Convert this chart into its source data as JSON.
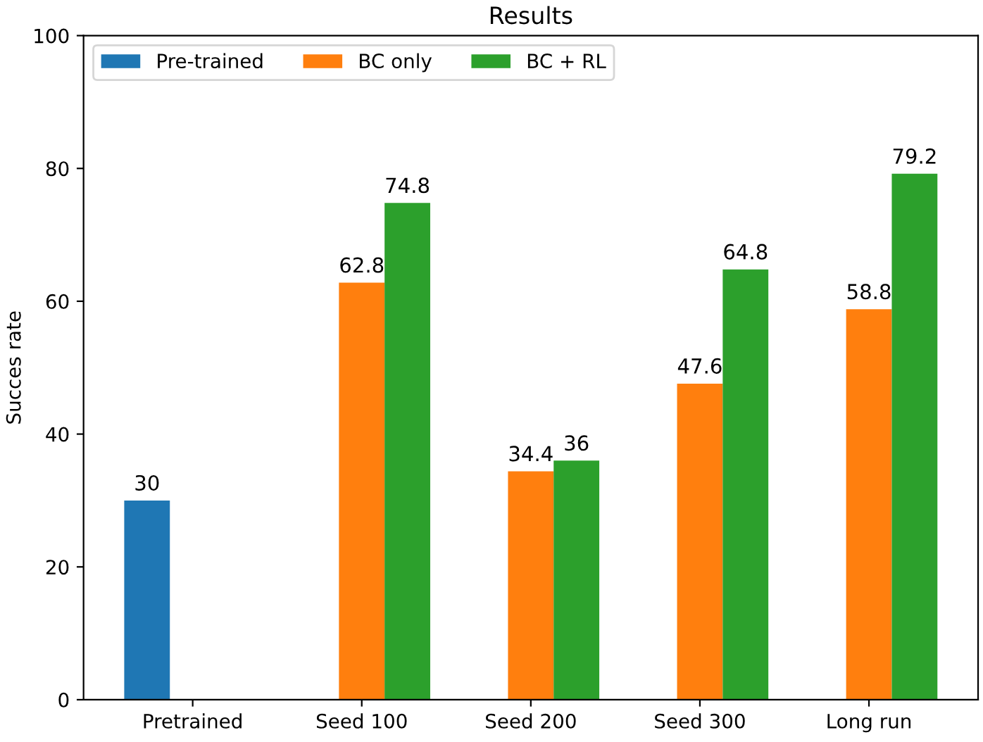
{
  "chart_data": {
    "type": "bar",
    "title": "Results",
    "ylabel": "Succes rate",
    "categories": [
      "Pretrained",
      "Seed 100",
      "Seed 200",
      "Seed 300",
      "Long run"
    ],
    "series": [
      {
        "name": "Pre-trained",
        "color": "#1f77b4",
        "values": [
          30,
          null,
          null,
          null,
          null
        ]
      },
      {
        "name": "BC only",
        "color": "#ff7f0e",
        "values": [
          null,
          62.8,
          34.4,
          47.6,
          58.8
        ]
      },
      {
        "name": "BC + RL",
        "color": "#2ca02c",
        "values": [
          null,
          74.8,
          36,
          64.8,
          79.2
        ]
      }
    ],
    "ylim": [
      0,
      100
    ],
    "yticks": [
      0,
      20,
      40,
      60,
      80,
      100
    ],
    "grid": false,
    "legend": "top left",
    "data_labels": true
  }
}
